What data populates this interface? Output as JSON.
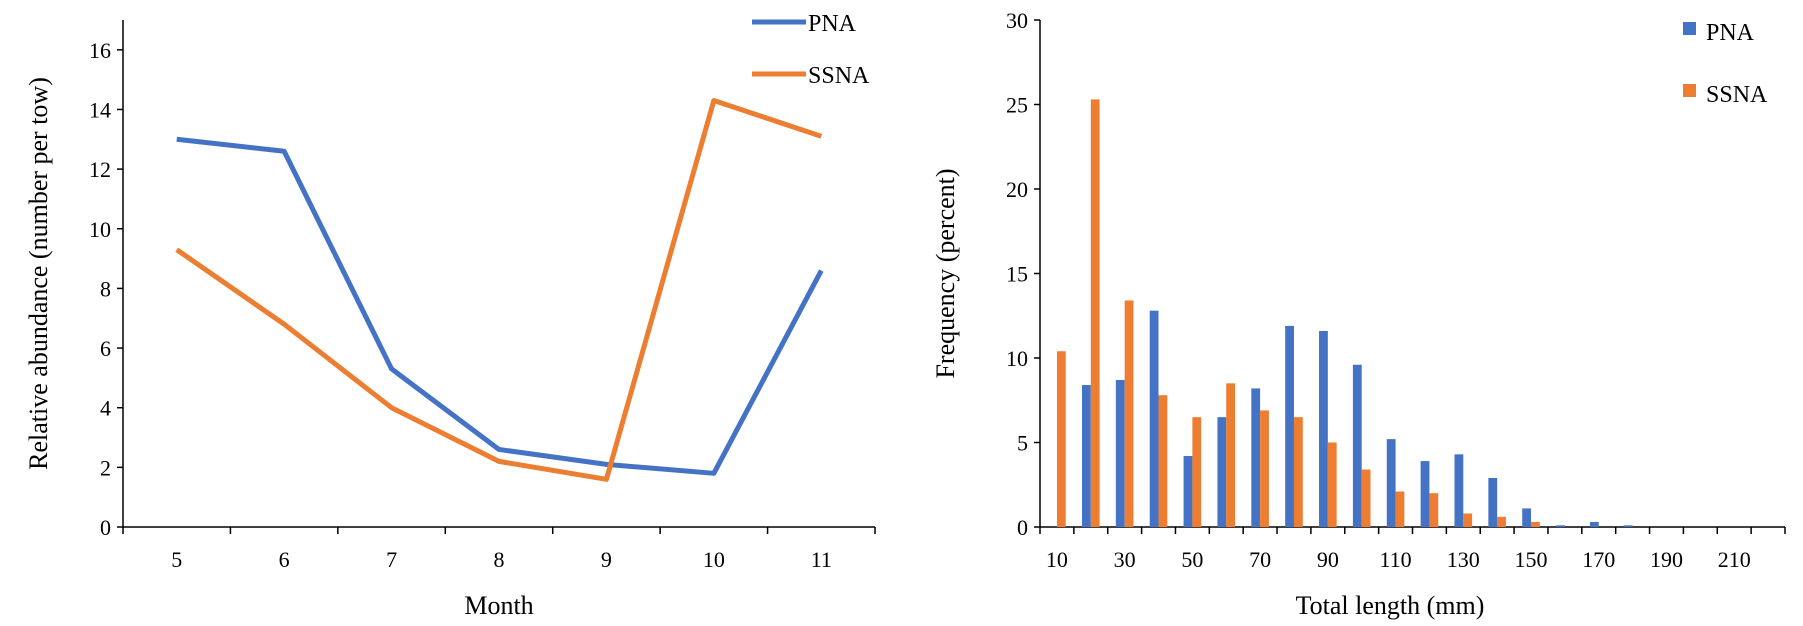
{
  "chart_data": [
    {
      "type": "line",
      "title": "",
      "xlabel": "Month",
      "ylabel": "Relative abundance (number per tow)",
      "x": [
        5,
        6,
        7,
        8,
        9,
        10,
        11
      ],
      "ylim": [
        0,
        17
      ],
      "yticks": [
        "0",
        "2",
        "4",
        "6",
        "8",
        "10",
        "12",
        "14",
        "16"
      ],
      "xticks": [
        "5",
        "6",
        "7",
        "8",
        "9",
        "10",
        "11"
      ],
      "legend_position": "top-right",
      "grid": false,
      "series": [
        {
          "name": "PNA",
          "color": "#4472C4",
          "values": [
            13.0,
            12.6,
            5.3,
            2.6,
            2.1,
            1.8,
            8.6
          ]
        },
        {
          "name": "SSNA",
          "color": "#ED7D31",
          "values": [
            9.3,
            6.8,
            4.0,
            2.2,
            1.6,
            14.3,
            13.1
          ]
        }
      ]
    },
    {
      "type": "bar",
      "title": "",
      "xlabel": "Total length (mm)",
      "ylabel": "Frequency (percent)",
      "categories": [
        10,
        20,
        30,
        40,
        50,
        60,
        70,
        80,
        90,
        100,
        110,
        120,
        130,
        140,
        150,
        160,
        170,
        180,
        190,
        200,
        210,
        220
      ],
      "xtick_labels": [
        "10",
        "30",
        "50",
        "70",
        "90",
        "110",
        "130",
        "150",
        "170",
        "190",
        "210"
      ],
      "ylim": [
        0,
        30
      ],
      "yticks": [
        "0",
        "5",
        "10",
        "15",
        "20",
        "25",
        "30"
      ],
      "legend_position": "top-right",
      "grid": false,
      "series": [
        {
          "name": "PNA",
          "color": "#4472C4",
          "values": [
            0,
            8.4,
            8.7,
            12.8,
            4.2,
            6.5,
            8.2,
            11.9,
            11.6,
            9.6,
            5.2,
            3.9,
            4.3,
            2.9,
            1.1,
            0.1,
            0.3,
            0.1,
            0,
            0,
            0,
            0
          ]
        },
        {
          "name": "SSNA",
          "color": "#ED7D31",
          "values": [
            10.4,
            25.3,
            13.4,
            7.8,
            6.5,
            8.5,
            6.9,
            6.5,
            5.0,
            3.4,
            2.1,
            2.0,
            0.8,
            0.6,
            0.3,
            0,
            0,
            0,
            0,
            0,
            0,
            0
          ]
        }
      ]
    }
  ]
}
